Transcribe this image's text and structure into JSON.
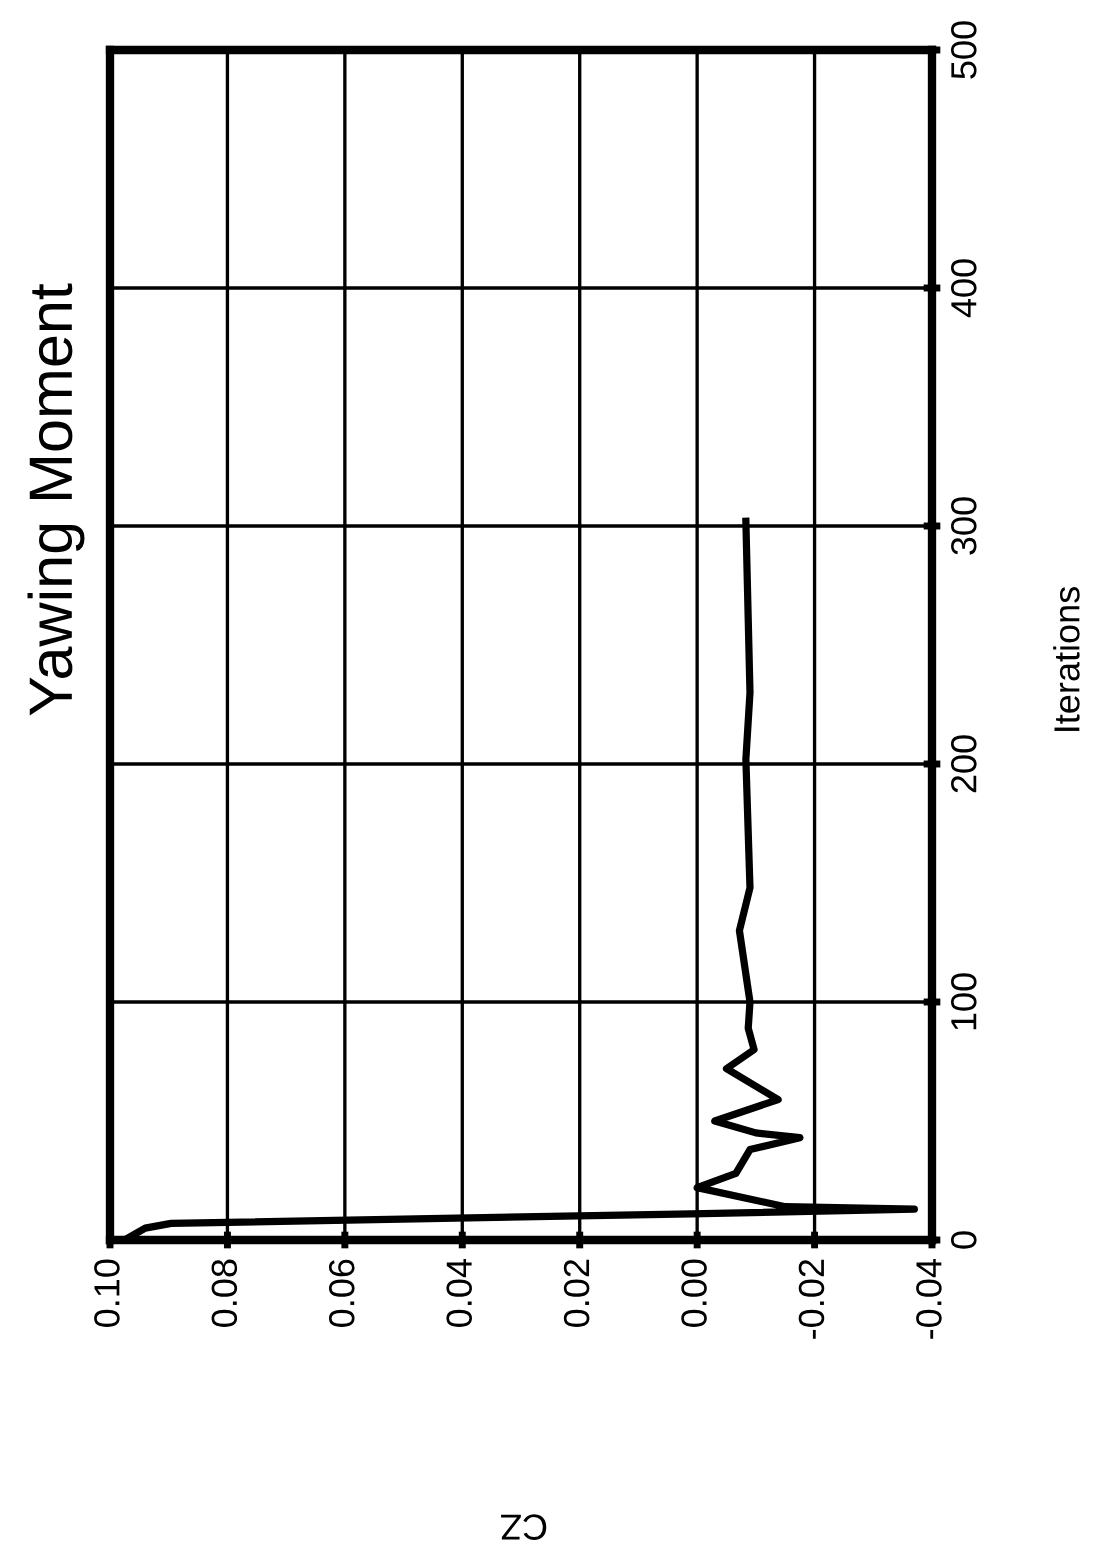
{
  "chart_data": {
    "type": "line",
    "title": "Yawing Moment",
    "xlabel": "CZ",
    "ylabel": "Iterations",
    "x": [
      0.0975,
      0.094,
      0.0896,
      0.001,
      -0.037,
      -0.015,
      0.0,
      -0.0066,
      -0.009,
      -0.0175,
      -0.01,
      -0.003,
      -0.0138,
      -0.005,
      -0.0097,
      -0.0087,
      -0.009,
      -0.0072,
      -0.009,
      -0.0083,
      -0.009,
      -0.0083
    ],
    "series": [
      {
        "color": "#000000",
        "values": [
          0,
          5,
          7,
          11,
          13,
          14,
          22,
          28,
          38,
          43,
          45,
          50,
          59,
          72,
          80,
          89,
          100,
          130,
          148,
          202,
          230,
          302
        ]
      }
    ],
    "ylim": [
      0,
      500
    ],
    "yticks": [
      0,
      100,
      200,
      300,
      400,
      500
    ],
    "xlim": [
      0.1,
      -0.04
    ],
    "xticks": [
      {
        "value": 0.1,
        "label": "0.10"
      },
      {
        "value": 0.08,
        "label": "0.08"
      },
      {
        "value": 0.06,
        "label": "0.06"
      },
      {
        "value": 0.04,
        "label": "0.04"
      },
      {
        "value": 0.02,
        "label": "0.02"
      },
      {
        "value": 0.0,
        "label": "0.00"
      },
      {
        "value": -0.02,
        "label": "-0.02"
      },
      {
        "value": -0.04,
        "label": "-0.04"
      }
    ],
    "grid": true,
    "legend": false
  }
}
